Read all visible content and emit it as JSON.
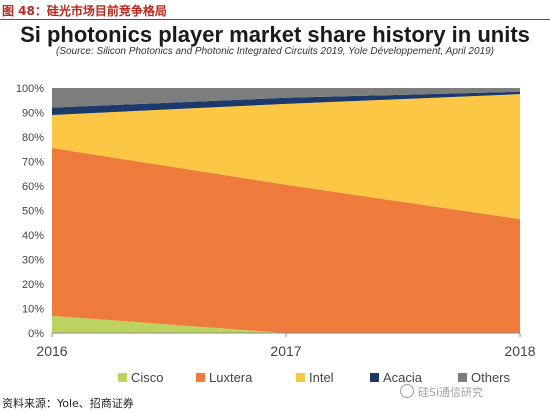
{
  "figure_label": "图 48：硅光市场目前竞争格局",
  "source_note": "资料来源：Yole、招商证券",
  "watermark": "硅Si通信研究",
  "colors": {
    "Cisco": "#bcd35f",
    "Luxtera": "#ee7a3c",
    "Intel": "#fcc745",
    "Acacia": "#1b3a6b",
    "Others": "#7d7d7d",
    "header_red": "#b8281e"
  },
  "chart_data": {
    "type": "area",
    "stacked": true,
    "title": "Si photonics player market share history in units",
    "subtitle": "(Source: Silicon Photonics and Photonic Integrated Circuits 2019, Yole Développement, April 2019)",
    "x": [
      "2016",
      "2017",
      "2018"
    ],
    "ylim": [
      0,
      100
    ],
    "y_ticks": [
      "0%",
      "10%",
      "20%",
      "30%",
      "40%",
      "50%",
      "60%",
      "70%",
      "80%",
      "90%",
      "100%"
    ],
    "legend_position": "bottom",
    "series": [
      {
        "name": "Cisco",
        "values": [
          7,
          0,
          0
        ]
      },
      {
        "name": "Luxtera",
        "values": [
          68.5,
          60.5,
          46.5
        ]
      },
      {
        "name": "Intel",
        "values": [
          13.5,
          33,
          51
        ]
      },
      {
        "name": "Acacia",
        "values": [
          3,
          2.5,
          1
        ]
      },
      {
        "name": "Others",
        "values": [
          8,
          4,
          1.5
        ]
      }
    ]
  }
}
